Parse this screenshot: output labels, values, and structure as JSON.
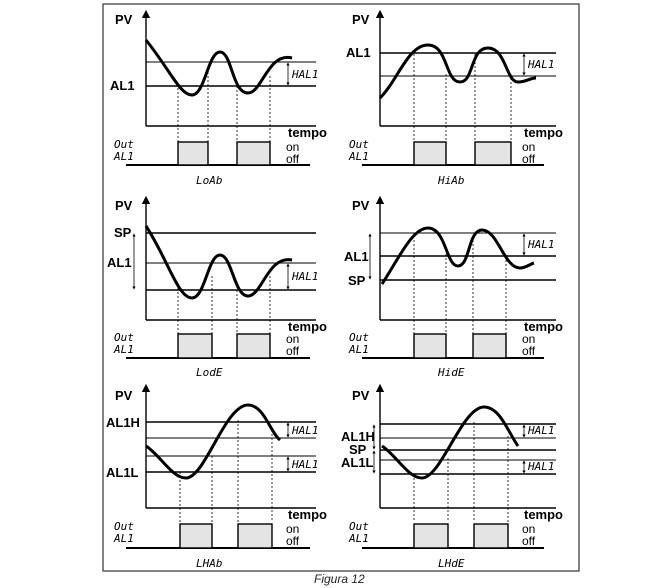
{
  "caption": "Figura 12",
  "common": {
    "y_axis": "PV",
    "x_axis": "tempo",
    "out_line1": "Out",
    "out_line2": "AL1",
    "on": "on",
    "off": "off",
    "hys": "HAL1"
  },
  "panels": {
    "loab": {
      "mode": "LoAb",
      "lbl1": "AL1"
    },
    "hiab": {
      "mode": "HiAb",
      "lbl1": "AL1"
    },
    "lode": {
      "mode": "LodE",
      "lbl1": "SP",
      "lbl2": "AL1"
    },
    "hide": {
      "mode": "HidE",
      "lbl1": "AL1",
      "lbl2": "SP"
    },
    "lhab": {
      "mode": "LHAb",
      "lbl1": "AL1H",
      "lbl2": "AL1L"
    },
    "lhde": {
      "mode": "LHdE",
      "lbl1": "AL1H",
      "lbl2": "SP",
      "lbl3": "AL1L"
    }
  }
}
